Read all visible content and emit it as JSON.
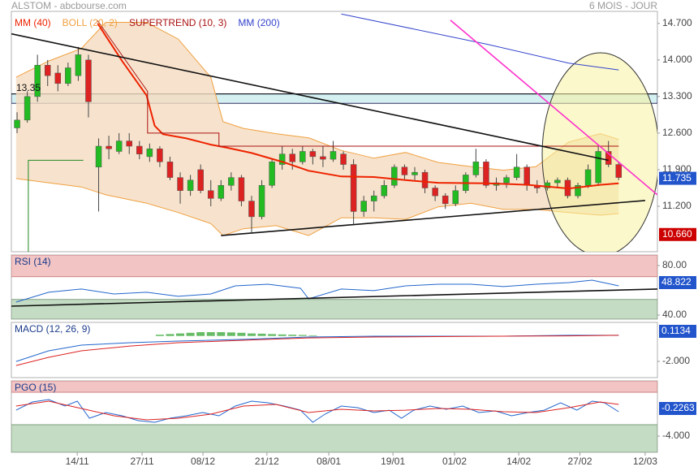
{
  "header": {
    "title": "ALSTOM - abcbourse.com",
    "period": "6 MOIS - JOUR"
  },
  "chart_data": [
    {
      "type": "candlestick",
      "up_color": "#22bb22",
      "down_color": "#dd2222",
      "xlim": [
        -0.56,
        62.8
      ],
      "xticks": [
        {
          "value": 5.9,
          "label": "14/11"
        },
        {
          "value": 12.26,
          "label": "27/11"
        },
        {
          "value": 18.23,
          "label": "08/12"
        },
        {
          "value": 24.5,
          "label": "21/12"
        },
        {
          "value": 30.57,
          "label": "08/01"
        },
        {
          "value": 36.86,
          "label": "19/01"
        },
        {
          "value": 42.9,
          "label": "01/02"
        },
        {
          "value": 49.2,
          "label": "14/02"
        },
        {
          "value": 55.2,
          "label": "27/02"
        },
        {
          "value": 61.6,
          "label": "12/03"
        }
      ],
      "ylim": [
        10.33,
        14.93
      ],
      "yticks": [
        {
          "value": 14.7,
          "label": "14.700"
        },
        {
          "value": 14.0,
          "label": "14.000"
        },
        {
          "value": 13.3,
          "label": "13.300"
        },
        {
          "value": 12.6,
          "label": "12.600"
        },
        {
          "value": 11.9,
          "label": "11.900"
        },
        {
          "value": 11.2,
          "label": "11.200"
        }
      ],
      "candles": [
        [
          12.7,
          13.0,
          12.6,
          12.85
        ],
        [
          12.85,
          13.4,
          12.8,
          13.3
        ],
        [
          13.3,
          14.1,
          13.2,
          13.9
        ],
        [
          13.9,
          14.0,
          13.5,
          13.7
        ],
        [
          13.75,
          13.9,
          13.4,
          13.55
        ],
        [
          13.55,
          13.95,
          13.5,
          13.85
        ],
        [
          13.7,
          14.25,
          13.6,
          14.1
        ],
        [
          14.0,
          14.1,
          12.9,
          13.2
        ],
        [
          11.95,
          12.5,
          11.1,
          12.35
        ],
        [
          12.35,
          12.55,
          12.1,
          12.3
        ],
        [
          12.25,
          12.6,
          12.2,
          12.45
        ],
        [
          12.45,
          12.6,
          12.2,
          12.35
        ],
        [
          12.35,
          12.45,
          12.1,
          12.2
        ],
        [
          12.15,
          12.4,
          12.05,
          12.3
        ],
        [
          12.3,
          12.35,
          11.95,
          12.05
        ],
        [
          12.05,
          12.15,
          11.7,
          11.75
        ],
        [
          11.75,
          11.85,
          11.25,
          11.5
        ],
        [
          11.5,
          11.8,
          11.4,
          11.7
        ],
        [
          11.9,
          12.0,
          11.45,
          11.5
        ],
        [
          11.5,
          11.7,
          11.2,
          11.35
        ],
        [
          11.35,
          11.7,
          11.3,
          11.6
        ],
        [
          11.6,
          11.85,
          11.5,
          11.75
        ],
        [
          11.75,
          11.8,
          11.2,
          11.3
        ],
        [
          11.3,
          11.4,
          10.7,
          11.0
        ],
        [
          11.0,
          11.7,
          10.95,
          11.6
        ],
        [
          11.6,
          12.1,
          11.55,
          12.05
        ],
        [
          12.0,
          12.35,
          11.9,
          12.2
        ],
        [
          12.2,
          12.3,
          11.9,
          12.05
        ],
        [
          12.05,
          12.35,
          12.0,
          12.25
        ],
        [
          12.25,
          12.3,
          12.0,
          12.15
        ],
        [
          12.15,
          12.35,
          11.95,
          12.1
        ],
        [
          12.1,
          12.45,
          12.05,
          12.25
        ],
        [
          12.2,
          12.25,
          11.9,
          12.0
        ],
        [
          12.0,
          12.1,
          10.85,
          11.1
        ],
        [
          11.1,
          11.4,
          11.0,
          11.3
        ],
        [
          11.3,
          11.5,
          11.1,
          11.4
        ],
        [
          11.4,
          11.7,
          11.35,
          11.6
        ],
        [
          11.6,
          12.0,
          11.55,
          11.95
        ],
        [
          11.95,
          12.0,
          11.7,
          11.8
        ],
        [
          11.8,
          11.95,
          11.7,
          11.85
        ],
        [
          11.85,
          11.9,
          11.45,
          11.55
        ],
        [
          11.55,
          11.6,
          11.3,
          11.4
        ],
        [
          11.4,
          11.45,
          11.15,
          11.25
        ],
        [
          11.25,
          11.6,
          11.2,
          11.5
        ],
        [
          11.5,
          11.85,
          11.45,
          11.8
        ],
        [
          11.8,
          12.3,
          11.75,
          12.05
        ],
        [
          12.05,
          12.1,
          11.55,
          11.6
        ],
        [
          11.6,
          11.75,
          11.5,
          11.65
        ],
        [
          11.65,
          11.8,
          11.55,
          11.75
        ],
        [
          11.75,
          12.2,
          11.7,
          11.95
        ],
        [
          11.95,
          12.0,
          11.5,
          11.6
        ],
        [
          11.6,
          11.7,
          11.45,
          11.55
        ],
        [
          11.55,
          11.7,
          11.5,
          11.65
        ],
        [
          11.65,
          11.75,
          11.55,
          11.7
        ],
        [
          11.7,
          11.75,
          11.35,
          11.4
        ],
        [
          11.4,
          11.65,
          11.35,
          11.6
        ],
        [
          11.6,
          12.0,
          11.55,
          11.9
        ],
        [
          11.65,
          12.35,
          11.6,
          12.25
        ],
        [
          12.25,
          12.45,
          11.95,
          12.0
        ],
        [
          12.0,
          12.05,
          11.7,
          11.75
        ]
      ],
      "series": [
        {
          "name": "MM (40)",
          "color": "#ee2200",
          "x": [
            7.9,
            10.3,
            12.7,
            13.5,
            14.3,
            16.6,
            19.0,
            20.6,
            23.0,
            26.2,
            28.6,
            31.8,
            35.0,
            38.1,
            41.3,
            46.1,
            50.1,
            54.1,
            57.2,
            59.0
          ],
          "values": [
            14.7,
            13.98,
            13.32,
            12.74,
            12.58,
            12.5,
            12.38,
            12.32,
            12.22,
            12.04,
            11.88,
            11.77,
            11.76,
            11.7,
            11.65,
            11.64,
            11.61,
            11.54,
            11.61,
            11.64
          ]
        },
        {
          "name": "BOLL (20, 2)",
          "color": "#f0a040",
          "fill": "#f5dcc0",
          "x": [
            -0.1,
            3.1,
            6.3,
            8.7,
            12.7,
            15.8,
            19.0,
            20.2,
            22.2,
            25.4,
            28.6,
            31.8,
            35.0,
            38.1,
            41.3,
            44.5,
            47.7,
            50.9,
            54.1,
            57.2,
            59.0
          ],
          "upper": [
            13.67,
            13.98,
            14.22,
            14.72,
            14.72,
            14.4,
            13.67,
            12.82,
            12.69,
            12.59,
            12.51,
            12.27,
            12.12,
            12.23,
            12.04,
            11.96,
            11.89,
            11.96,
            12.43,
            12.59,
            12.48
          ],
          "lower": [
            11.73,
            11.65,
            11.57,
            11.42,
            11.26,
            11.08,
            10.87,
            10.64,
            10.77,
            10.83,
            10.64,
            10.98,
            10.98,
            10.95,
            11.19,
            11.26,
            11.14,
            11.14,
            11.08,
            11.03,
            11.06
          ]
        },
        {
          "name": "SUPERTREND (10, 3)",
          "color": "#aa1111",
          "x": [
            7.9,
            12.8,
            12.8,
            14.3,
            19.8,
            19.8,
            59.0
          ],
          "values": [
            14.75,
            13.4,
            12.6,
            12.6,
            12.6,
            12.35,
            12.35
          ],
          "up_color": "#228822",
          "up_x": [
            1.1,
            1.1,
            6.5
          ],
          "up_values": [
            10.3,
            12.08,
            12.08
          ]
        },
        {
          "name": "MM (200)",
          "color": "#3344cc",
          "x": [
            31.8,
            46.1,
            54.1,
            59.0
          ],
          "values": [
            14.88,
            14.3,
            13.94,
            13.81
          ]
        }
      ],
      "level": {
        "value": 13.35,
        "label": "13.35"
      },
      "zone": {
        "from": 13.17,
        "to": 13.35,
        "color": "#d4f0f0"
      },
      "trendlines": [
        {
          "color": "#111111",
          "x": [
            -0.56,
            58.0
          ],
          "values": [
            14.5,
            12.08
          ]
        },
        {
          "color": "#111111",
          "x": [
            20.0,
            61.6
          ],
          "values": [
            10.64,
            11.31
          ]
        },
        {
          "color": "#ff33cc",
          "x": [
            42.5,
            62.8
          ],
          "values": [
            14.76,
            11.42
          ]
        }
      ],
      "badges": [
        {
          "value": 11.735,
          "label": "11.735",
          "color": "#2255cc"
        },
        {
          "value": 10.66,
          "label": "10.660",
          "color": "#cc0000"
        }
      ]
    },
    {
      "type": "line",
      "title": "RSI (14)",
      "ylim": [
        36.7,
        88.5
      ],
      "yticks": [
        {
          "value": 80,
          "label": "80.00"
        },
        {
          "value": 40,
          "label": "40.00"
        }
      ],
      "overbought": 71,
      "oversold": 52.6,
      "series": [
        {
          "color": "#2266cc",
          "x": [
            -0.1,
            3.1,
            6.3,
            9.5,
            12.7,
            15.8,
            19.0,
            21.4,
            24.6,
            27.8,
            28.6,
            31.8,
            35.0,
            38.1,
            41.3,
            44.5,
            47.7,
            50.9,
            54.1,
            56.4,
            59.0
          ],
          "values": [
            50.5,
            58.4,
            61.0,
            57.0,
            58.4,
            55.1,
            57.0,
            63.6,
            64.9,
            61.6,
            53.1,
            61.0,
            59.7,
            63.6,
            64.9,
            64.9,
            63.0,
            64.9,
            66.2,
            68.2,
            63.6
          ]
        }
      ],
      "trendlines": [
        {
          "color": "#111111",
          "x": [
            -0.56,
            62.8
          ],
          "values": [
            47.2,
            61.0
          ]
        }
      ],
      "badge": {
        "label": "48.822",
        "color": "#2255cc"
      }
    },
    {
      "type": "line",
      "title": "MACD (12, 26, 9)",
      "ylim": [
        -3.28,
        1.07
      ],
      "yticks": [
        {
          "value": -2,
          "label": "-2.000"
        }
      ],
      "histogram": {
        "color": "#66bb66",
        "x": [
          14,
          15,
          16,
          17,
          18,
          19,
          20,
          21,
          22,
          23,
          24,
          25,
          26,
          27,
          28,
          29
        ],
        "values": [
          0.1,
          0.15,
          0.2,
          0.25,
          0.3,
          0.3,
          0.3,
          0.28,
          0.25,
          0.2,
          0.18,
          0.15,
          0.12,
          0.1,
          0.08,
          0.05
        ]
      },
      "series": [
        {
          "color": "#2266cc",
          "x": [
            -0.1,
            3.1,
            6.3,
            11.1,
            15.8,
            22.2,
            28.6,
            35.0,
            41.3,
            47.7,
            54.1,
            59.0
          ],
          "values": [
            -2.01,
            -1.17,
            -0.72,
            -0.53,
            -0.4,
            -0.27,
            -0.08,
            -0.02,
            -0.02,
            -0.02,
            0.05,
            0.05
          ]
        },
        {
          "color": "#dd2222",
          "x": [
            -0.1,
            3.1,
            6.3,
            11.1,
            15.8,
            22.2,
            28.6,
            35.0,
            41.3,
            47.7,
            54.1,
            59.0
          ],
          "values": [
            -2.33,
            -1.68,
            -1.17,
            -0.79,
            -0.53,
            -0.34,
            -0.15,
            -0.08,
            -0.05,
            -0.02,
            0.01,
            0.05
          ]
        }
      ],
      "badge": {
        "label": "0.1134",
        "color": "#2255cc"
      }
    },
    {
      "type": "line",
      "title": "PGO (15)",
      "ylim": [
        -6.35,
        4.0
      ],
      "yticks": [
        {
          "value": -4,
          "label": "-4.000"
        }
      ],
      "overbought": 2.35,
      "oversold": -2.35,
      "series": [
        {
          "color": "#2266cc",
          "x": [
            -0.1,
            1.5,
            3.1,
            4.7,
            5.9,
            7.1,
            8.7,
            10.3,
            11.9,
            13.5,
            15.0,
            16.6,
            18.2,
            19.8,
            21.4,
            23.0,
            24.6,
            26.2,
            27.8,
            29.0,
            30.2,
            31.8,
            33.4,
            35.0,
            36.5,
            37.7,
            38.9,
            40.5,
            42.1,
            43.7,
            45.3,
            46.9,
            48.5,
            50.1,
            51.7,
            53.3,
            54.9,
            56.4,
            57.6,
            59.0
          ],
          "values": [
            -0.24,
            0.94,
            1.29,
            0.35,
            1.06,
            -1.41,
            -0.59,
            -1.06,
            -1.76,
            -2.0,
            -1.41,
            -1.06,
            -0.59,
            -1.06,
            0.35,
            1.06,
            0.82,
            0.35,
            -0.24,
            -2.0,
            -0.82,
            0.35,
            0.12,
            -0.59,
            -0.24,
            -1.41,
            -0.24,
            0.35,
            -0.12,
            0.35,
            -0.59,
            -0.35,
            -1.06,
            -0.59,
            -0.24,
            0.82,
            -0.24,
            1.06,
            0.82,
            -0.47
          ]
        },
        {
          "color": "#dd2222",
          "x": [
            -0.1,
            3.1,
            6.3,
            9.5,
            12.7,
            15.8,
            19.0,
            22.2,
            25.4,
            28.6,
            31.8,
            35.0,
            38.1,
            41.3,
            44.5,
            47.7,
            50.9,
            54.1,
            57.2,
            59.0
          ],
          "values": [
            0.35,
            1.06,
            0,
            -1.06,
            -1.65,
            -1.41,
            -0.82,
            0.35,
            0.59,
            -0.59,
            -0.12,
            -0.35,
            -0.24,
            0,
            -0.12,
            -0.47,
            -0.59,
            0.12,
            0.94,
            0.59
          ]
        }
      ],
      "badge": {
        "label": "-0.2263",
        "color": "#2255cc"
      }
    }
  ]
}
